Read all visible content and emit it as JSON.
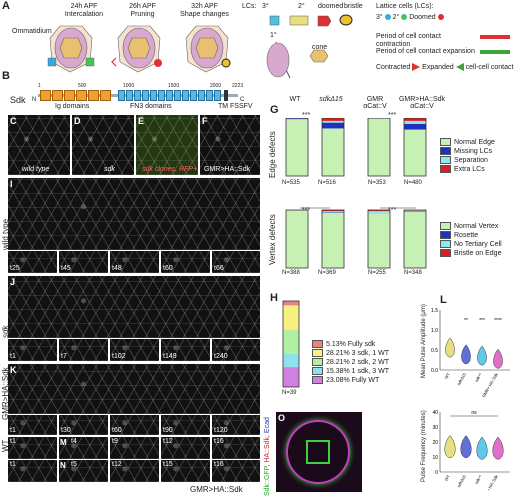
{
  "panelA": {
    "letter": "A",
    "stages": [
      {
        "line1": "24h APF",
        "line2": "Intercalation"
      },
      {
        "line1": "26h APF",
        "line2": "Pruning"
      },
      {
        "line1": "32h APF",
        "line2": "Shape changes"
      }
    ],
    "ommatidium": "Ommatidium",
    "lcs_label": "LCs:",
    "cell_types": {
      "tertiary": "3°",
      "secondary": "2°",
      "doomed": "doomed",
      "bristle": "bristle",
      "primary": "1°",
      "cone": "cone"
    },
    "lattice_title": "Lattice cells (LCs):",
    "lattice_tertiary": "3°",
    "lattice_secondary": "2°",
    "lattice_doomed": "Doomed",
    "contraction": "Period of cell contact contraction",
    "expansion": "Period of cell contact expansion",
    "contracted": "Contracted",
    "expanded": "Expanded",
    "cell_contact": "cell-cell contact",
    "colors": {
      "contraction": "#e03030",
      "expansion": "#3aa33a",
      "tertiary": "#39a7e0",
      "secondary": "#4cc25a",
      "doomed": "#e03030"
    }
  },
  "panelB": {
    "letter": "B",
    "protein": "Sdk",
    "n": "N",
    "c": "C",
    "ticks": [
      "1",
      "500",
      "1000",
      "1500",
      "2000",
      "2223"
    ],
    "ig": "Ig domains",
    "fn3": "FN3 domains",
    "tm": "TM",
    "fssfv": "FSSFV"
  },
  "panelsCF": {
    "C": {
      "letter": "C",
      "caption": "wild type"
    },
    "D": {
      "letter": "D",
      "caption": "sdk"
    },
    "E": {
      "letter": "E",
      "caption": "sdk clones, RFP+"
    },
    "F": {
      "letter": "F",
      "caption": "GMR>HA::Sdk"
    }
  },
  "rowLabels": {
    "wildtype": "wild type",
    "sdk": "sdk",
    "gmr": "GMR>HA::Sdk",
    "wt": "WT"
  },
  "timelineLetters": {
    "I": "I",
    "J": "J",
    "K": "K",
    "L": "L",
    "M": "M",
    "N": "N",
    "O": "O"
  },
  "times": {
    "wt": [
      "t25",
      "t45",
      "t48",
      "t60",
      "t66"
    ],
    "sdk": [
      "t1",
      "t7",
      "t102",
      "t149",
      "t240"
    ],
    "gmr": [
      "t1",
      "t30",
      "t60",
      "t90",
      "t120"
    ],
    "M": [
      "t1",
      "t4",
      "t9",
      "t12",
      "t16"
    ],
    "N": [
      "t1",
      "t5",
      "t12",
      "t15",
      "t16"
    ]
  },
  "bottomLabel": "GMR>HA::Sdk",
  "rotLabels": {
    "sdkgfp": "Sdk::GFP",
    "hasdk": "HA::Sdk",
    "ecad": "Ecad"
  },
  "panelG": {
    "letter": "G",
    "cols": [
      "WT",
      "sdkΔ15",
      "GMR αCat::V",
      "GMR>HA::Sdk αCat::V"
    ],
    "sig": [
      "***",
      "***",
      "***",
      "***"
    ],
    "edge_title": "Edge defects",
    "vertex_title": "Vertex defects",
    "edge_n": [
      "N=535",
      "N=516",
      "N=353",
      "N=480"
    ],
    "vertex_n": [
      "N=388",
      "N=369",
      "N=255",
      "N=348"
    ],
    "edge_legend": [
      {
        "label": "Normal Edge",
        "color": "#c6f0b4"
      },
      {
        "label": "Missing LCs",
        "color": "#2030c0"
      },
      {
        "label": "Separation",
        "color": "#8ee8ee"
      },
      {
        "label": "Extra LCs",
        "color": "#d82020"
      }
    ],
    "vertex_legend": [
      {
        "label": "Normal Vertex",
        "color": "#c6f0b4"
      },
      {
        "label": "Rosette",
        "color": "#2030c0"
      },
      {
        "label": "No Tertiary Cell",
        "color": "#8ee8ee"
      },
      {
        "label": "Bristle on Edge",
        "color": "#d82020"
      }
    ]
  },
  "panelH": {
    "letter": "H",
    "n": "N=39",
    "legend": [
      {
        "label": "5.13% Fully sdk",
        "color": "#f08080"
      },
      {
        "label": "28.21% 3 sdk, 1 WT",
        "color": "#f8f080"
      },
      {
        "label": "28.21% 2 sdk, 2 WT",
        "color": "#b0f0a0"
      },
      {
        "label": "15.38% 1 sdk, 3 WT",
        "color": "#90e0f0"
      },
      {
        "label": "23.08% Fully WT",
        "color": "#d080e0"
      }
    ]
  },
  "panelL": {
    "letter": "L",
    "amp_ylabel": "Mean Pulse Amplitude (μm)",
    "freq_ylabel": "Pulse Frequency (minutes)",
    "groups": [
      "WT",
      "sdkΔ15",
      "sdk⁴⁸",
      "GMR> HA::Sdk"
    ],
    "amp_sig": [
      "",
      "**",
      "***",
      "****"
    ],
    "freq_sig": "ns",
    "amp_ticks": [
      "0.0",
      "0.5",
      "1.0",
      "1.5"
    ],
    "freq_ticks": [
      "0",
      "10",
      "20",
      "30",
      "40"
    ],
    "amp_medians": [
      0.5,
      0.33,
      0.3,
      0.22
    ],
    "freq_medians": [
      15,
      15,
      14,
      14
    ],
    "colors": [
      "#e8e080",
      "#6070d8",
      "#60c8e8",
      "#e070c8"
    ]
  },
  "chart_data": [
    {
      "type": "bar",
      "title": "Edge defects",
      "categories": [
        "WT",
        "sdkΔ15",
        "GMR αCat::V",
        "GMR>HA::Sdk αCat::V"
      ],
      "series": [
        {
          "name": "Normal Edge",
          "values": [
            0.98,
            0.82,
            0.99,
            0.8
          ]
        },
        {
          "name": "Missing LCs",
          "values": [
            0.01,
            0.1,
            0.005,
            0.1
          ]
        },
        {
          "name": "Separation",
          "values": [
            0.005,
            0.03,
            0.0,
            0.05
          ]
        },
        {
          "name": "Extra LCs",
          "values": [
            0.005,
            0.05,
            0.005,
            0.05
          ]
        }
      ],
      "ylim": [
        0,
        1
      ]
    },
    {
      "type": "bar",
      "title": "Vertex defects",
      "categories": [
        "WT",
        "sdkΔ15",
        "GMR αCat::V",
        "GMR>HA::Sdk αCat::V"
      ],
      "series": [
        {
          "name": "Normal Vertex",
          "values": [
            0.99,
            0.95,
            0.93,
            0.97
          ]
        },
        {
          "name": "Rosette",
          "values": [
            0.0,
            0.01,
            0.0,
            0.01
          ]
        },
        {
          "name": "No Tertiary Cell",
          "values": [
            0.005,
            0.02,
            0.05,
            0.01
          ]
        },
        {
          "name": "Bristle on Edge",
          "values": [
            0.005,
            0.02,
            0.02,
            0.01
          ]
        }
      ],
      "ylim": [
        0,
        1
      ]
    },
    {
      "type": "bar",
      "categories": [
        "Fully sdk",
        "3 sdk, 1 WT",
        "2 sdk, 2 WT",
        "1 sdk, 3 WT",
        "Fully WT"
      ],
      "values": [
        5.13,
        28.21,
        28.21,
        15.38,
        23.08
      ]
    }
  ]
}
